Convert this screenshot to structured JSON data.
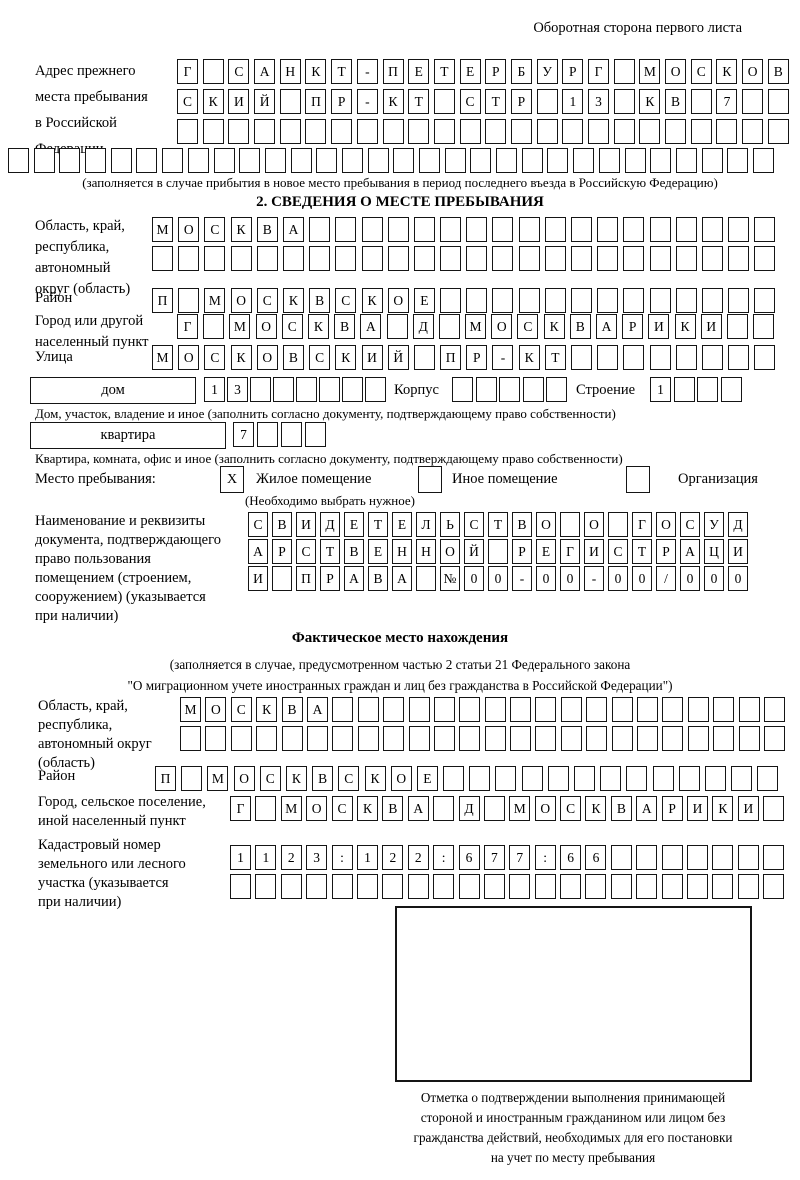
{
  "page": {
    "side_note": "Оборотная сторона первого листа"
  },
  "previous_address": {
    "label": "Адрес прежнего\nместа пребывания\nв Российской\nФедерации",
    "rows": [
      {
        "cells": 24,
        "text": "Г САНКТ-ПЕТЕРБУРГ МОСКОВ"
      },
      {
        "cells": 24,
        "text": "СКИЙ ПР-КТ СТР 13 КВ 7"
      },
      {
        "cells": 24,
        "text": ""
      },
      {
        "cells": 30,
        "text": ""
      }
    ],
    "note": "(заполняется в случае прибытия в новое место пребывания в период последнего въезда в Российскую Федерацию)"
  },
  "section2": {
    "title": "2. СВЕДЕНИЯ О МЕСТЕ ПРЕБЫВАНИЯ",
    "region": {
      "label": "Область, край,\nреспублика,\nавтономный\nокруг (область)",
      "rows": [
        {
          "cells": 24,
          "text": "МОСКВА"
        },
        {
          "cells": 24,
          "text": ""
        }
      ]
    },
    "district": {
      "label": "Район",
      "row": {
        "cells": 24,
        "text": "П МОСКВСКОЕ"
      }
    },
    "city": {
      "label": "Город или другой\nнаселенный пункт",
      "row": {
        "cells": 23,
        "text": "Г МОСКВА Д МОСКВАРИКИ"
      }
    },
    "street": {
      "label": "Улица",
      "row": {
        "cells": 24,
        "text": "МОСКОВСКИЙ ПР-КТ"
      }
    },
    "house": {
      "field_label": "дом",
      "row": {
        "cells": 8,
        "text": "13"
      },
      "korpus_label": "Корпус",
      "korpus_row": {
        "cells": 5,
        "text": ""
      },
      "stroenie_label": "Строение",
      "stroenie_row": {
        "cells": 4,
        "text": "1"
      },
      "note": "Дом, участок, владение и иное (заполнить согласно документу, подтверждающему право собственности)"
    },
    "apartment": {
      "field_label": "квартира",
      "row": {
        "cells": 4,
        "text": "7"
      },
      "note": "Квартира, комната, офис и иное (заполнить согласно документу, подтверждающему право собственности)"
    },
    "stay_place": {
      "label": "Место пребывания:",
      "options": [
        {
          "label": "Жилое помещение",
          "mark": "X"
        },
        {
          "label": "Иное помещение",
          "mark": ""
        },
        {
          "label": "Организация",
          "mark": ""
        }
      ],
      "note": "(Необходимо выбрать нужное)"
    },
    "document": {
      "label": "Наименование и реквизиты\nдокумента, подтверждающего\nправо пользования\nпомещением (строением,\nсооружением) (указывается\nпри наличии)",
      "rows": [
        {
          "cells": 21,
          "text": "СВИДЕТЕЛЬСТВО О ГОСУД"
        },
        {
          "cells": 21,
          "text": "АРСТВЕННОЙ РЕГИСТРАЦИ"
        },
        {
          "cells": 21,
          "text": "И ПРАВА №00-00-00/000"
        }
      ]
    }
  },
  "actual_location": {
    "title": "Фактическое место нахождения",
    "note": "(заполняется в случае, предусмотренном частью 2 статьи 21 Федерального закона\n\"О миграционном учете иностранных граждан и лиц без гражданства в Российской Федерации\")",
    "region": {
      "label": "Область, край,\nреспублика,\nавтономный округ\n(область)",
      "rows": [
        {
          "cells": 24,
          "text": "МОСКВА"
        },
        {
          "cells": 24,
          "text": ""
        }
      ]
    },
    "district": {
      "label": "Район",
      "row": {
        "cells": 24,
        "text": "П МОСКВСКОЕ"
      }
    },
    "city": {
      "label": "Город, сельское поселение,\nиной населенный пункт",
      "row": {
        "cells": 22,
        "text": "Г МОСКВА Д МОСКВАРИКИ"
      }
    },
    "cadastral": {
      "label": "Кадастровый номер\nземельного или лесного\nучастка (указывается\nпри наличии)",
      "rows": [
        {
          "cells": 22,
          "text": "1123:122:677:66"
        },
        {
          "cells": 22,
          "text": ""
        }
      ]
    }
  },
  "stamp": {
    "caption": "Отметка о подтверждении выполнения принимающей\nстороной и иностранным гражданином или лицом без\nгражданства действий, необходимых для его постановки\nна учет по месту пребывания"
  }
}
